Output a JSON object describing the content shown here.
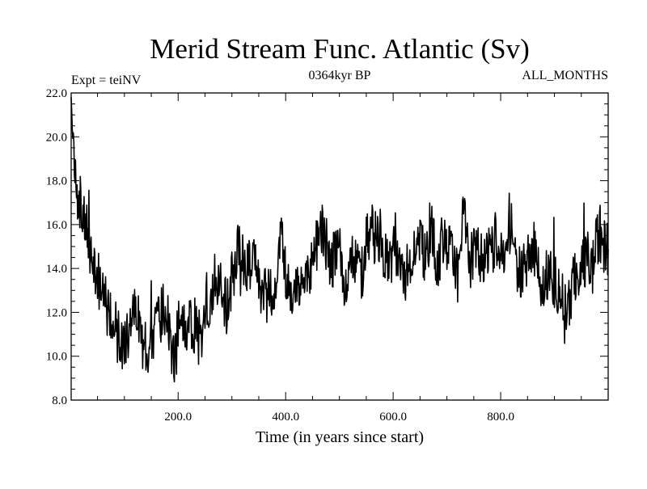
{
  "chart_data": {
    "type": "line",
    "title": "Merid Stream Func. Atlantic (Sv)",
    "left_label": "Expt = teiNV",
    "center_label": "0364kyr BP",
    "right_label": "ALL_MONTHS",
    "xlabel": "Time (in years since start)",
    "ylabel": "",
    "xlim": [
      1,
      1000
    ],
    "ylim": [
      8.0,
      22.0
    ],
    "xticks": [
      200,
      400,
      600,
      800
    ],
    "xtick_labels": [
      "200.0",
      "400.0",
      "600.0",
      "800.0"
    ],
    "yticks": [
      8,
      10,
      12,
      14,
      16,
      18,
      20,
      22
    ],
    "ytick_labels": [
      "8.0",
      "10.0",
      "12.0",
      "14.0",
      "16.0",
      "18.0",
      "20.0",
      "22.0"
    ],
    "series": [
      {
        "name": "Merid Stream Func. Atlantic",
        "x_start": 1,
        "x_step": 10,
        "values": [
          21.6,
          17.2,
          16.8,
          15.5,
          14.1,
          13.5,
          12.6,
          12.0,
          11.5,
          10.6,
          10.5,
          11.0,
          12.7,
          11.1,
          10.4,
          10.7,
          11.3,
          12.2,
          11.8,
          9.7,
          11.3,
          11.2,
          11.4,
          11.4,
          10.7,
          12.5,
          12.6,
          13.7,
          12.8,
          12.2,
          13.6,
          14.7,
          14.5,
          14.2,
          14.5,
          13.1,
          12.8,
          12.8,
          13.5,
          16.0,
          13.5,
          12.9,
          13.0,
          13.0,
          13.4,
          14.1,
          15.4,
          15.9,
          14.3,
          14.4,
          14.6,
          13.3,
          14.5,
          14.5,
          13.5,
          15.3,
          15.6,
          15.4,
          14.2,
          14.4,
          14.7,
          13.9,
          13.6,
          14.2,
          15.0,
          15.3,
          14.3,
          16.3,
          13.8,
          15.3,
          15.0,
          14.4,
          13.7,
          16.8,
          14.0,
          15.0,
          14.4,
          14.7,
          14.7,
          15.5,
          15.1,
          14.9,
          16.5,
          13.3,
          13.6,
          14.8,
          15.1,
          13.6,
          13.6,
          13.6,
          13.4,
          13.1,
          12.0,
          12.9,
          13.7,
          13.9,
          14.5,
          14.0,
          15.5,
          15.0
        ]
      }
    ]
  }
}
